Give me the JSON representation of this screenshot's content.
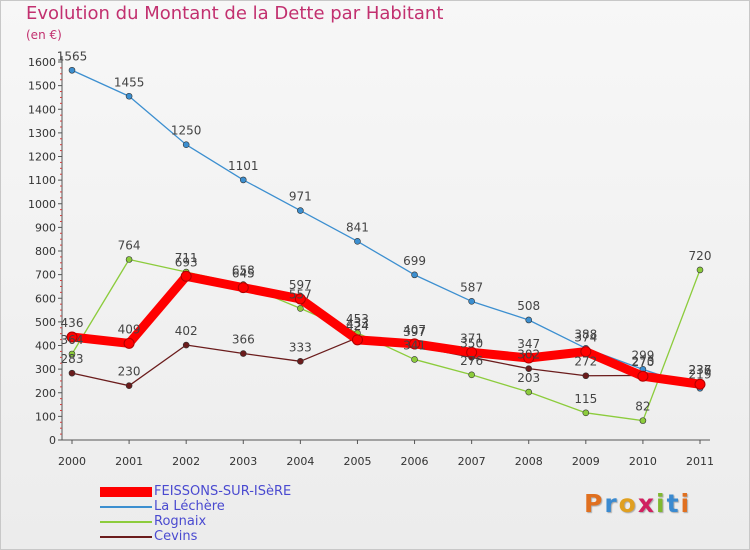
{
  "title": "Evolution du Montant de la Dette par Habitant",
  "subtitle": "(en €)",
  "logo_text": "Proxiti",
  "chart_data": {
    "type": "line",
    "title": "Evolution du Montant de la Dette par Habitant",
    "ylabel": "(en €)",
    "ylim": [
      0,
      1600
    ],
    "yticks": [
      0,
      100,
      200,
      300,
      400,
      500,
      600,
      700,
      800,
      900,
      1000,
      1100,
      1200,
      1300,
      1400,
      1500,
      1600
    ],
    "x": [
      "2000",
      "2001",
      "2002",
      "2003",
      "2004",
      "2005",
      "2006",
      "2007",
      "2008",
      "2009",
      "2010",
      "2011"
    ],
    "grid": false,
    "legend_position": "bottom-left",
    "series": [
      {
        "name": "FEISSONS-SUR-ISèRE",
        "color": "#ff0000",
        "values": [
          436,
          409,
          693,
          645,
          597,
          424,
          407,
          371,
          347,
          374,
          270,
          236
        ]
      },
      {
        "name": "La Léchère",
        "color": "#3c8fd0",
        "values": [
          1565,
          1455,
          1250,
          1101,
          971,
          841,
          699,
          587,
          508,
          388,
          299,
          219
        ]
      },
      {
        "name": "Rognaix",
        "color": "#8ccc3c",
        "values": [
          364,
          764,
          711,
          658,
          557,
          453,
          341,
          276,
          203,
          115,
          82,
          720
        ]
      },
      {
        "name": "Cevins",
        "color": "#6b1c1c",
        "values": [
          283,
          230,
          402,
          366,
          333,
          433,
          397,
          350,
          302,
          272,
          273,
          237
        ]
      }
    ]
  }
}
